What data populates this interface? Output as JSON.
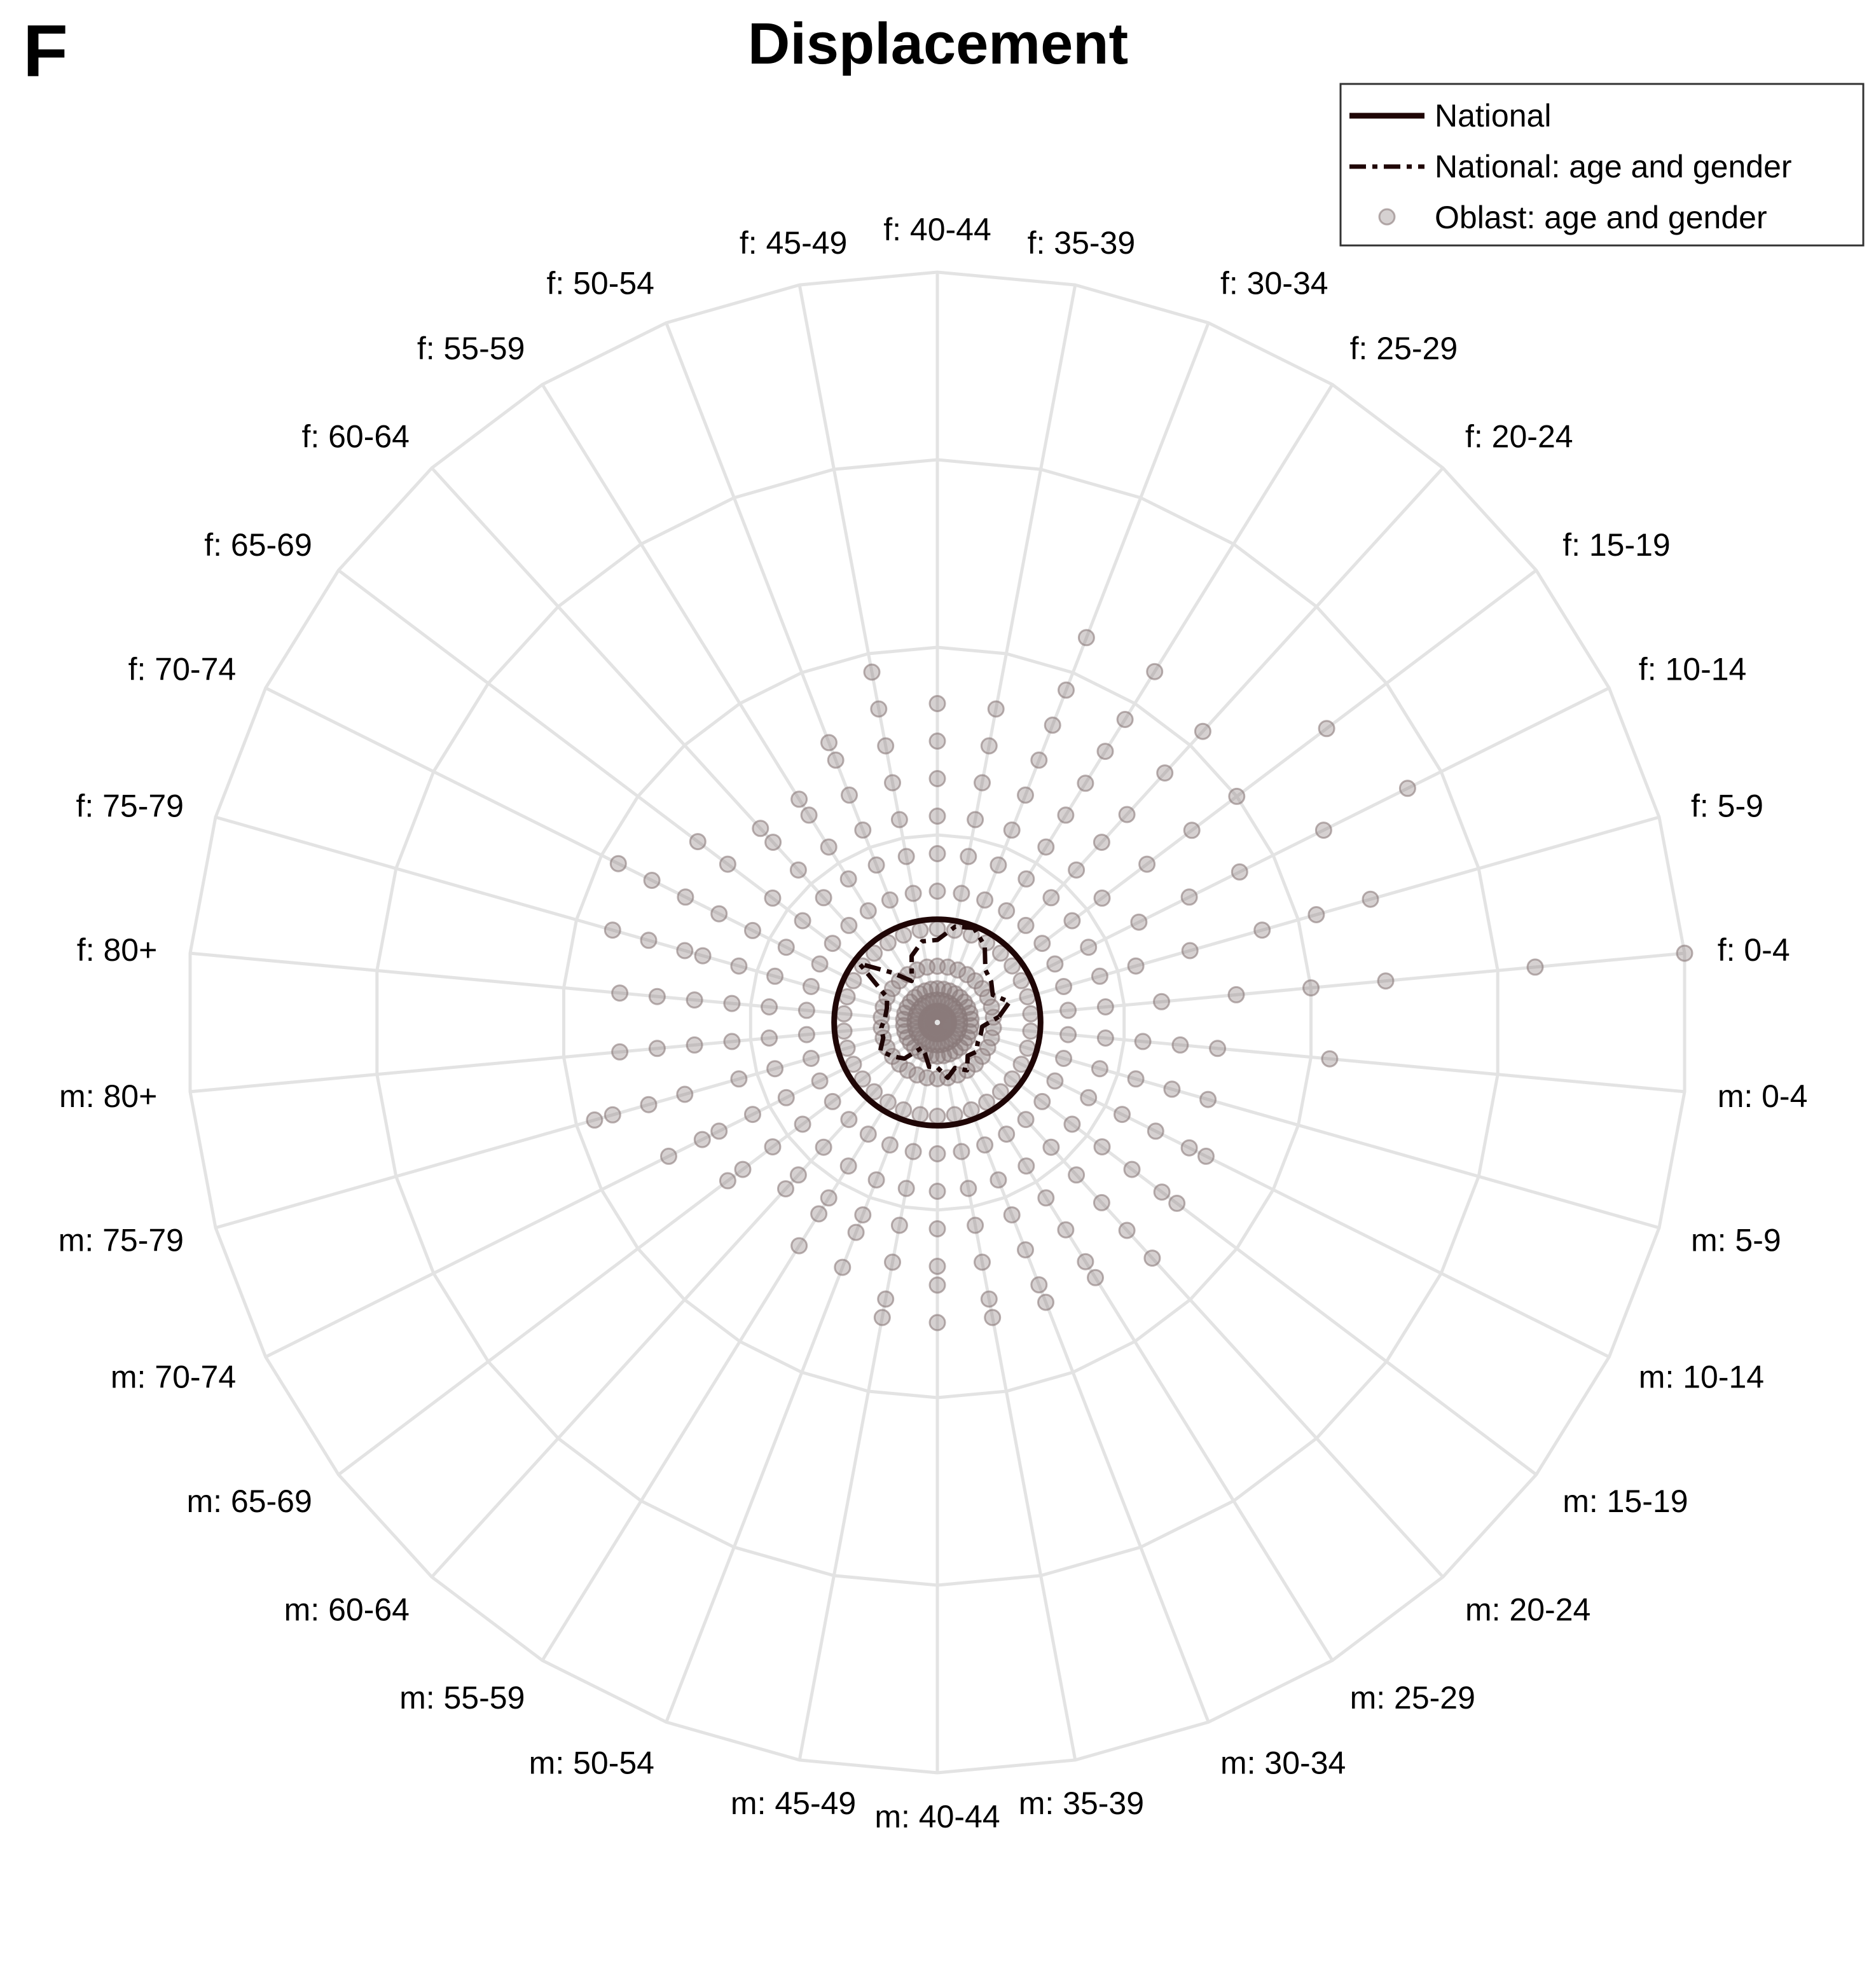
{
  "panel_label": "F",
  "chart_data": {
    "type": "radar",
    "title": "Displacement",
    "categories": [
      "f: 0-4",
      "f: 5-9",
      "f: 10-14",
      "f: 15-19",
      "f: 20-24",
      "f: 25-29",
      "f: 30-34",
      "f: 35-39",
      "f: 40-44",
      "f: 45-49",
      "f: 50-54",
      "f: 55-59",
      "f: 60-64",
      "f: 65-69",
      "f: 70-74",
      "f: 75-79",
      "f: 80+",
      "m: 80+",
      "m: 75-79",
      "m: 70-74",
      "m: 65-69",
      "m: 60-64",
      "m: 55-59",
      "m: 50-54",
      "m: 45-49",
      "m: 40-44",
      "m: 35-39",
      "m: 30-34",
      "m: 25-29",
      "m: 20-24",
      "m: 15-19",
      "m: 10-14",
      "m: 5-9",
      "m: 0-4"
    ],
    "radial_range": [
      0,
      4
    ],
    "grid": true,
    "legend_position": "top-right",
    "colors": {
      "series": "#1f0606",
      "oblast_points": "#8a7a7a",
      "grid": "#e3e3e3"
    },
    "series": [
      {
        "name": "National",
        "style": "solid",
        "values": [
          0.55,
          0.55,
          0.55,
          0.55,
          0.55,
          0.55,
          0.55,
          0.55,
          0.55,
          0.55,
          0.55,
          0.55,
          0.55,
          0.55,
          0.55,
          0.55,
          0.55,
          0.55,
          0.55,
          0.55,
          0.55,
          0.55,
          0.55,
          0.55,
          0.55,
          0.55,
          0.55,
          0.55,
          0.55,
          0.55,
          0.55,
          0.55,
          0.55,
          0.55
        ]
      },
      {
        "name": "National: age and gender",
        "style": "dashed",
        "values": [
          0.33,
          0.4,
          0.33,
          0.36,
          0.38,
          0.48,
          0.54,
          0.52,
          0.44,
          0.44,
          0.38,
          0.26,
          0.36,
          0.52,
          0.3,
          0.28,
          0.28,
          0.3,
          0.3,
          0.34,
          0.3,
          0.26,
          0.16,
          0.18,
          0.24,
          0.24,
          0.3,
          0.26,
          0.3,
          0.24,
          0.26,
          0.24,
          0.24,
          0.24
        ]
      },
      {
        "name": "Oblast: age and gender",
        "style": "points",
        "points": [
          [
            0.3,
            0.5,
            0.7,
            0.9,
            1.2,
            1.6,
            2.0,
            2.4,
            3.2,
            4.0
          ],
          [
            0.3,
            0.5,
            0.7,
            0.9,
            1.1,
            1.4,
            1.8,
            2.1,
            2.4
          ],
          [
            0.3,
            0.5,
            0.7,
            0.9,
            1.2,
            1.5,
            1.8,
            2.3,
            2.8
          ],
          [
            0.3,
            0.5,
            0.7,
            0.9,
            1.1,
            1.4,
            1.7,
            2.0,
            2.6
          ],
          [
            0.3,
            0.5,
            0.7,
            0.9,
            1.1,
            1.3,
            1.5,
            1.8,
            2.1
          ],
          [
            0.3,
            0.5,
            0.7,
            0.9,
            1.1,
            1.3,
            1.5,
            1.7,
            1.9,
            2.2
          ],
          [
            0.3,
            0.5,
            0.7,
            0.9,
            1.1,
            1.3,
            1.5,
            1.7,
            1.9,
            2.2
          ],
          [
            0.3,
            0.5,
            0.7,
            0.9,
            1.1,
            1.3,
            1.5,
            1.7
          ],
          [
            0.3,
            0.5,
            0.7,
            0.9,
            1.1,
            1.3,
            1.5,
            1.7
          ],
          [
            0.3,
            0.5,
            0.7,
            0.9,
            1.1,
            1.3,
            1.5,
            1.7,
            1.9
          ],
          [
            0.3,
            0.5,
            0.7,
            0.9,
            1.1,
            1.3,
            1.5,
            1.6
          ],
          [
            0.3,
            0.5,
            0.7,
            0.9,
            1.1,
            1.3,
            1.4
          ],
          [
            0.3,
            0.5,
            0.7,
            0.9,
            1.1,
            1.3,
            1.4
          ],
          [
            0.3,
            0.5,
            0.7,
            0.9,
            1.1,
            1.4,
            1.6
          ],
          [
            0.3,
            0.5,
            0.7,
            0.9,
            1.1,
            1.3,
            1.5,
            1.7,
            1.9
          ],
          [
            0.3,
            0.5,
            0.7,
            0.9,
            1.1,
            1.3,
            1.4,
            1.6,
            1.8
          ],
          [
            0.3,
            0.5,
            0.7,
            0.9,
            1.1,
            1.3,
            1.5,
            1.7
          ],
          [
            0.3,
            0.5,
            0.7,
            0.9,
            1.1,
            1.3,
            1.5,
            1.7
          ],
          [
            0.3,
            0.5,
            0.7,
            0.9,
            1.1,
            1.4,
            1.6,
            1.8,
            1.9
          ],
          [
            0.3,
            0.5,
            0.7,
            0.9,
            1.1,
            1.3,
            1.4,
            1.6
          ],
          [
            0.3,
            0.5,
            0.7,
            0.9,
            1.1,
            1.3,
            1.4
          ],
          [
            0.3,
            0.5,
            0.7,
            0.9,
            1.1,
            1.2
          ],
          [
            0.3,
            0.5,
            0.7,
            0.9,
            1.1,
            1.2,
            1.4
          ],
          [
            0.3,
            0.5,
            0.7,
            0.9,
            1.1,
            1.2,
            1.4
          ],
          [
            0.3,
            0.5,
            0.7,
            0.9,
            1.1,
            1.3,
            1.5,
            1.6
          ],
          [
            0.3,
            0.5,
            0.7,
            0.9,
            1.1,
            1.3,
            1.4,
            1.6
          ],
          [
            0.3,
            0.5,
            0.7,
            0.9,
            1.1,
            1.3,
            1.5,
            1.6
          ],
          [
            0.3,
            0.5,
            0.7,
            0.9,
            1.1,
            1.3,
            1.5,
            1.6
          ],
          [
            0.3,
            0.5,
            0.7,
            0.9,
            1.1,
            1.3,
            1.5,
            1.6
          ],
          [
            0.3,
            0.5,
            0.7,
            0.9,
            1.1,
            1.3,
            1.5,
            1.7
          ],
          [
            0.3,
            0.5,
            0.7,
            0.9,
            1.1,
            1.3,
            1.5,
            1.6
          ],
          [
            0.3,
            0.5,
            0.7,
            0.9,
            1.1,
            1.3,
            1.5,
            1.6
          ],
          [
            0.3,
            0.5,
            0.7,
            0.9,
            1.1,
            1.3,
            1.5
          ],
          [
            0.3,
            0.5,
            0.7,
            0.9,
            1.1,
            1.3,
            1.5,
            2.1
          ]
        ]
      }
    ]
  }
}
